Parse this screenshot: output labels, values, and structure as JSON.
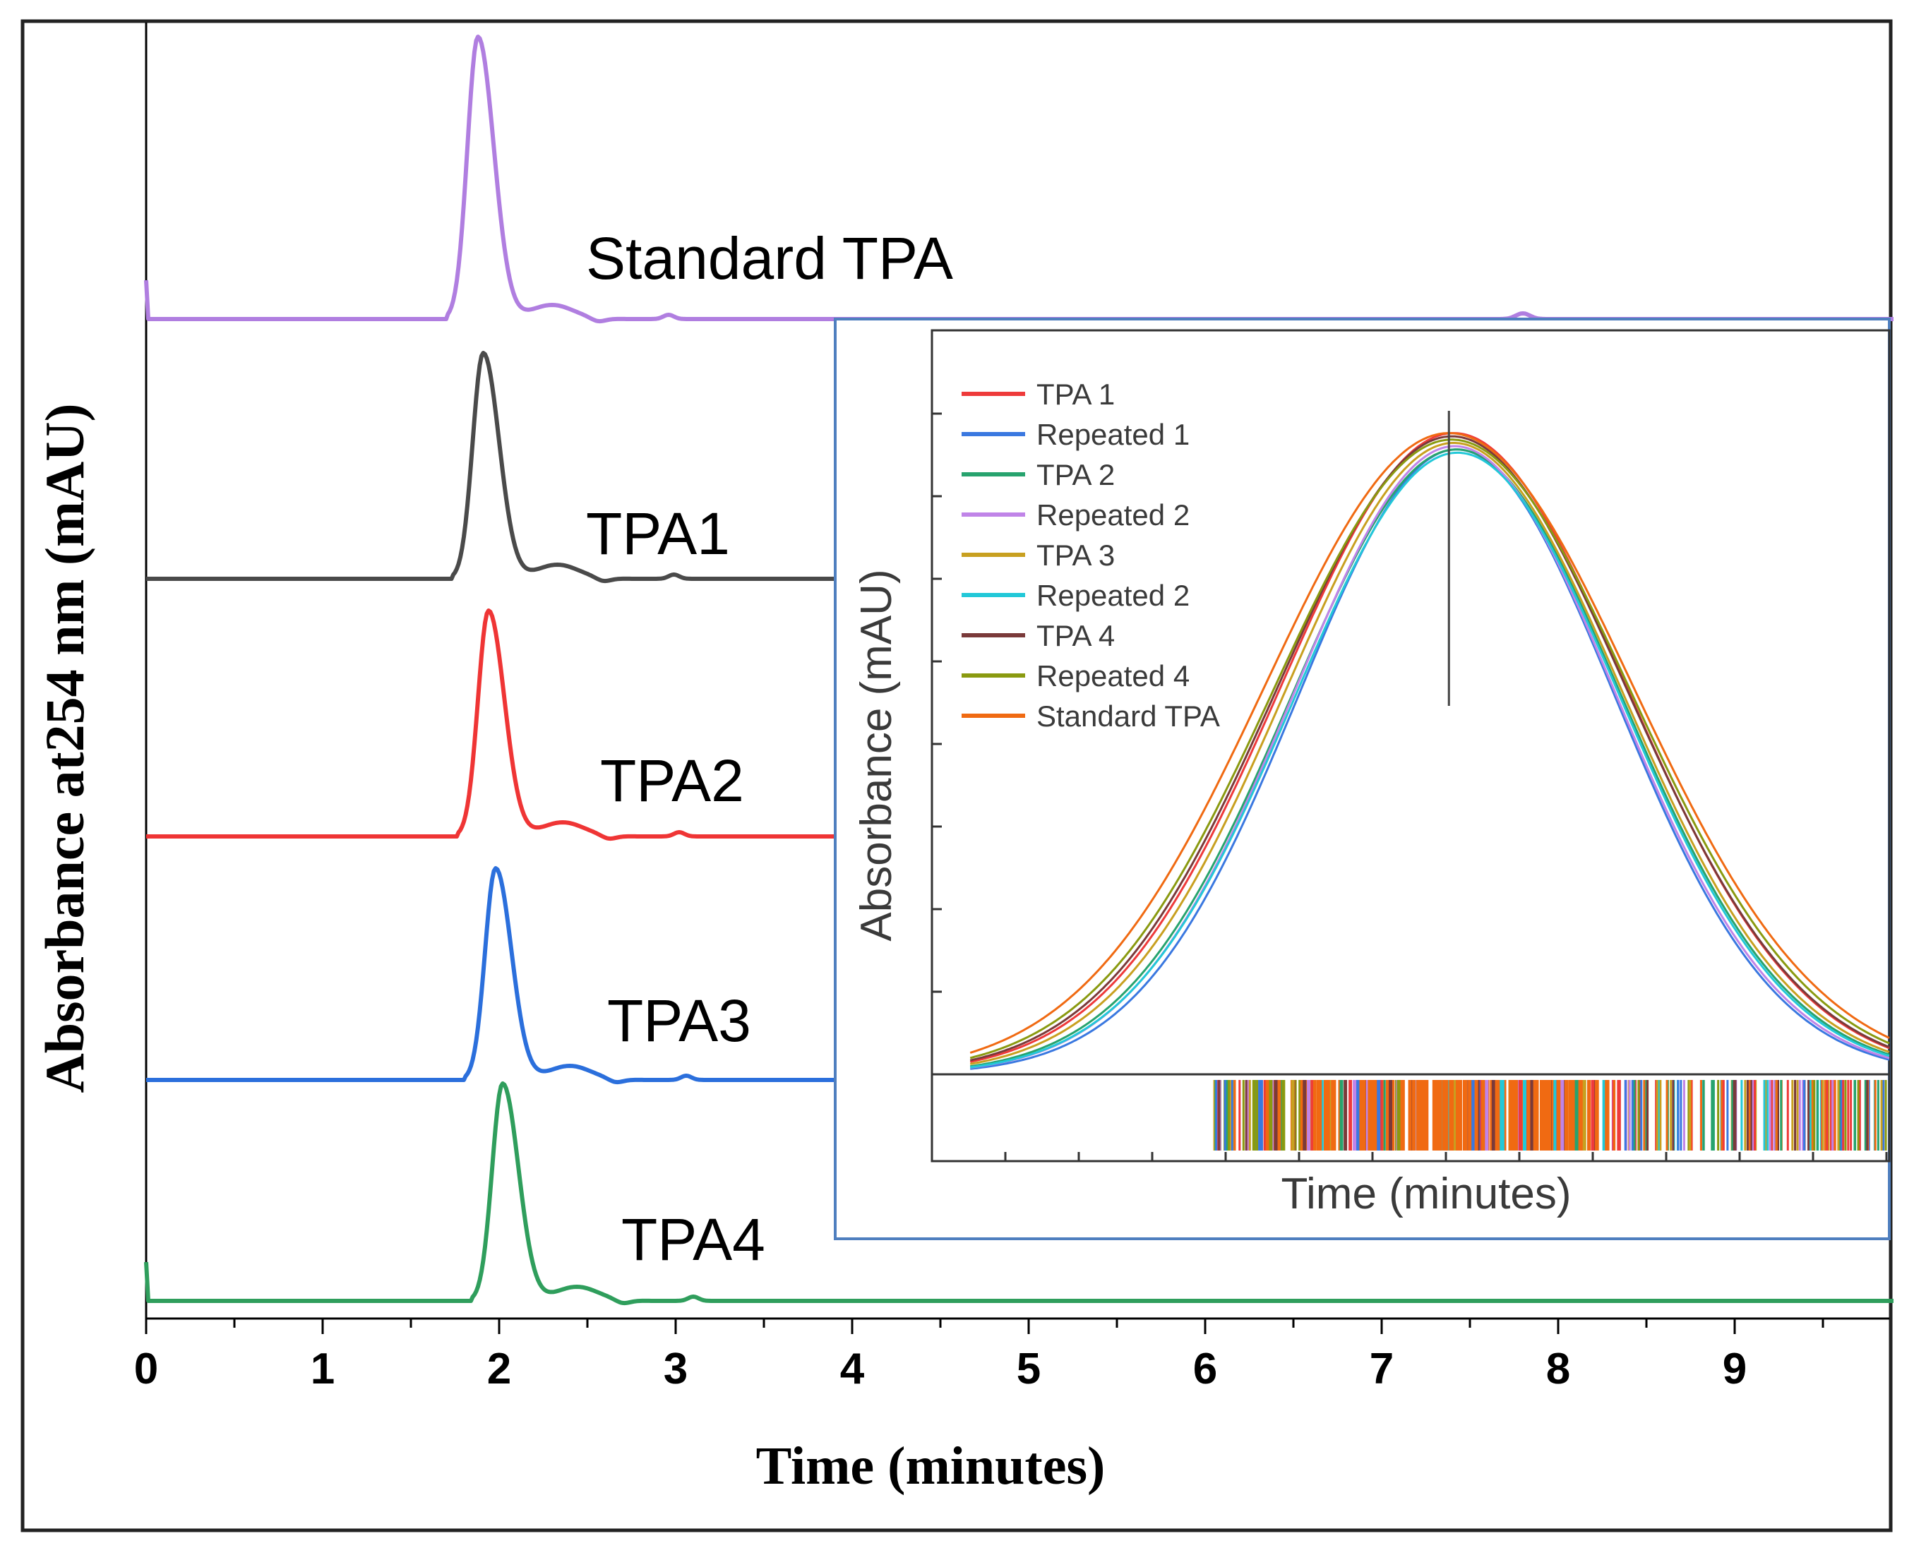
{
  "chart_data": [
    {
      "type": "line",
      "title": "",
      "xlabel": "Time (minutes)",
      "ylabel": "Absorbance at254 nm (mAU)",
      "xlim": [
        0,
        9.9
      ],
      "xticks": [
        "0",
        "1",
        "2",
        "3",
        "4",
        "5",
        "6",
        "7",
        "8",
        "9"
      ],
      "layout": "stacked-offset",
      "series": [
        {
          "name": "Standard TPA",
          "label": "Standard TPA",
          "color": "#b07ee0",
          "peak_time": 1.88,
          "peak_height": 1.0,
          "baseline_end": 9.9
        },
        {
          "name": "TPA1",
          "label": "TPA1",
          "color": "#4a4a4a",
          "peak_time": 1.91,
          "peak_height": 0.8,
          "baseline_end": 3.9
        },
        {
          "name": "TPA2",
          "label": "TPA2",
          "color": "#ef3535",
          "peak_time": 1.94,
          "peak_height": 0.8,
          "baseline_end": 3.9
        },
        {
          "name": "TPA3",
          "label": "TPA3",
          "color": "#2b6fdc",
          "peak_time": 1.98,
          "peak_height": 0.75,
          "baseline_end": 3.9
        },
        {
          "name": "TPA4",
          "label": "TPA4",
          "color": "#2f9e5c",
          "peak_time": 2.02,
          "peak_height": 0.77,
          "baseline_end": 9.9
        }
      ]
    },
    {
      "type": "line",
      "title": "",
      "xlabel": "Time (minutes)",
      "ylabel": "Absorbance (mAU)",
      "legend_position": "top-left",
      "marker_center": 0.54,
      "series": [
        {
          "name": "TPA 1",
          "color": "#ee3a3a",
          "center": 0.545,
          "width": 0.18,
          "peak": 0.98
        },
        {
          "name": "Repeated 1",
          "color": "#3a78e0",
          "center": 0.548,
          "width": 0.165,
          "peak": 0.955
        },
        {
          "name": "TPA 2",
          "color": "#27a36e",
          "center": 0.548,
          "width": 0.172,
          "peak": 0.955
        },
        {
          "name": "Repeated 2",
          "color": "#c084e8",
          "center": 0.546,
          "width": 0.168,
          "peak": 0.96
        },
        {
          "name": "TPA 3",
          "color": "#c8a020",
          "center": 0.545,
          "width": 0.176,
          "peak": 0.965
        },
        {
          "name": "Repeated 2",
          "color": "#22c8d8",
          "center": 0.549,
          "width": 0.17,
          "peak": 0.95
        },
        {
          "name": "TPA 4",
          "color": "#7a3a3a",
          "center": 0.543,
          "width": 0.182,
          "peak": 0.975
        },
        {
          "name": "Repeated 4",
          "color": "#8a9a10",
          "center": 0.543,
          "width": 0.186,
          "peak": 0.97
        },
        {
          "name": "Standard TPA",
          "color": "#f06a12",
          "center": 0.54,
          "width": 0.192,
          "peak": 0.98
        }
      ]
    }
  ]
}
